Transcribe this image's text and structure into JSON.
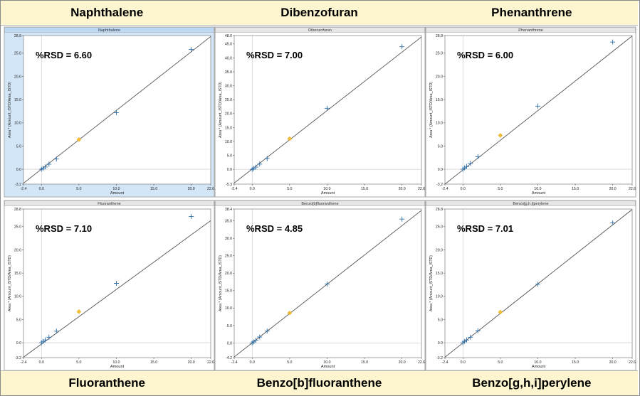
{
  "top_titles": [
    "Naphthalene",
    "Dibenzofuran",
    "Phenanthrene"
  ],
  "bottom_titles": [
    "Fluoranthene",
    "Benzo[b]fluoranthene",
    "Benzo[g,h,i]perylene"
  ],
  "colors": {
    "band": "#fdf5cf",
    "header_selected": "#bcd9f5",
    "header": "#e6e6e6",
    "plot_selected_bg": "#d3e6f7",
    "point": "#2f6fa8",
    "qc_point": "#f5be34",
    "fit_line": "#555555"
  },
  "chart_data": [
    {
      "type": "scatter",
      "title": "Naphthalene",
      "rsd_label": "%RSD = 6.60",
      "xlabel": "Amount",
      "ylabel": "Area * (Amount_ISTD/Area_ISTD)",
      "xlim": [
        -2.4,
        22.6
      ],
      "ylim": [
        -3.2,
        28.8
      ],
      "xticks": [
        "-2.4",
        "0.0",
        "5.0",
        "10.0",
        "15.0",
        "20.0",
        "22.6"
      ],
      "yticks": [
        "28.8",
        "25.0",
        "20.0",
        "15.0",
        "10.0",
        "5.0",
        "0.0",
        "-3.2"
      ],
      "points": [
        [
          0,
          0
        ],
        [
          0.2,
          0.2
        ],
        [
          0.5,
          0.5
        ],
        [
          1,
          1.1
        ],
        [
          2,
          2.2
        ],
        [
          10,
          12.2
        ],
        [
          20,
          25.8
        ]
      ],
      "qc": [
        5,
        6.4
      ],
      "fit": [
        [
          -2.4,
          -3.0
        ],
        [
          22.6,
          28.6
        ]
      ],
      "selected": true
    },
    {
      "type": "scatter",
      "title": "Dibenzofuran",
      "rsd_label": "%RSD = 7.00",
      "xlabel": "Amount",
      "ylabel": "Area * (Amount_ISTD/Area_ISTD)",
      "xlim": [
        -2.4,
        22.6
      ],
      "ylim": [
        -5.3,
        48.0
      ],
      "xticks": [
        "-2.4",
        "0.0",
        "5.0",
        "10.0",
        "15.0",
        "20.0",
        "22.6"
      ],
      "yticks": [
        "48.0",
        "45.0",
        "40.0",
        "35.0",
        "30.0",
        "25.0",
        "20.0",
        "15.0",
        "10.0",
        "5.0",
        "0.0",
        "-5.3"
      ],
      "points": [
        [
          0,
          0
        ],
        [
          0.2,
          0.3
        ],
        [
          0.5,
          0.8
        ],
        [
          1,
          1.9
        ],
        [
          2,
          3.9
        ],
        [
          10,
          21.9
        ],
        [
          20,
          44.0
        ]
      ],
      "qc": [
        5,
        11.0
      ],
      "fit": [
        [
          -2.4,
          -4.9
        ],
        [
          22.6,
          47.5
        ]
      ],
      "selected": false
    },
    {
      "type": "scatter",
      "title": "Phenanthrene",
      "rsd_label": "%RSD = 6.00",
      "xlabel": "Amount",
      "ylabel": "Area * (Amount_ISTD/Area_ISTD)",
      "xlim": [
        -2.4,
        22.6
      ],
      "ylim": [
        -3.2,
        28.8
      ],
      "xticks": [
        "-2.4",
        "0.0",
        "5.0",
        "10.0",
        "15.0",
        "20.0",
        "22.6"
      ],
      "yticks": [
        "28.8",
        "25.0",
        "20.0",
        "15.0",
        "10.0",
        "5.0",
        "0.0",
        "-3.2"
      ],
      "points": [
        [
          0,
          0
        ],
        [
          0.2,
          0.3
        ],
        [
          0.5,
          0.6
        ],
        [
          1,
          1.3
        ],
        [
          2,
          2.7
        ],
        [
          10,
          13.6
        ],
        [
          20,
          27.4
        ]
      ],
      "qc": [
        5,
        7.3
      ],
      "fit": [
        [
          -2.4,
          -3.2
        ],
        [
          22.6,
          28.7
        ]
      ],
      "selected": false
    },
    {
      "type": "scatter",
      "title": "Fluoranthene",
      "rsd_label": "%RSD = 7.10",
      "xlabel": "Amount",
      "ylabel": "Area * (Amount_ISTD/Area_ISTD)",
      "xlim": [
        -2.4,
        22.6
      ],
      "ylim": [
        -3.2,
        28.8
      ],
      "xticks": [
        "-2.4",
        "0.0",
        "5.0",
        "10.0",
        "15.0",
        "20.0",
        "22.6"
      ],
      "yticks": [
        "28.8",
        "25.0",
        "20.0",
        "15.0",
        "10.0",
        "5.0",
        "0.0",
        "-3.2"
      ],
      "points": [
        [
          0,
          0
        ],
        [
          0.2,
          0.3
        ],
        [
          0.5,
          0.6
        ],
        [
          1,
          1.2
        ],
        [
          2,
          2.5
        ],
        [
          10,
          12.8
        ],
        [
          20,
          27.2
        ]
      ],
      "qc": [
        5,
        6.7
      ],
      "fit": [
        [
          -2.4,
          -3.1
        ],
        [
          22.6,
          26.3
        ]
      ],
      "selected": false
    },
    {
      "type": "scatter",
      "title": "Benzo[b]fluoranthene",
      "rsd_label": "%RSD = 4.85",
      "xlabel": "Amount",
      "ylabel": "Area * (Amount_ISTD/Area_ISTD)",
      "xlim": [
        -2.4,
        22.6
      ],
      "ylim": [
        -4.2,
        38.4
      ],
      "xticks": [
        "-2.4",
        "0.0",
        "5.0",
        "10.0",
        "15.0",
        "20.0",
        "22.6"
      ],
      "yticks": [
        "38.4",
        "35.0",
        "30.0",
        "25.0",
        "20.0",
        "15.0",
        "10.0",
        "5.0",
        "0.0",
        "-4.2"
      ],
      "points": [
        [
          0,
          0
        ],
        [
          0.2,
          0.3
        ],
        [
          0.5,
          0.8
        ],
        [
          1,
          1.7
        ],
        [
          2,
          3.4
        ],
        [
          10,
          16.9
        ],
        [
          20,
          35.5
        ]
      ],
      "qc": [
        5,
        8.6
      ],
      "fit": [
        [
          -2.4,
          -4.0
        ],
        [
          22.6,
          38.0
        ]
      ],
      "selected": false
    },
    {
      "type": "scatter",
      "title": "Benzo[g,h,i]perylene",
      "rsd_label": "%RSD = 7.01",
      "xlabel": "Amount",
      "ylabel": "Area * (Amount_ISTD/Area_ISTD)",
      "xlim": [
        -2.4,
        22.6
      ],
      "ylim": [
        -3.2,
        28.8
      ],
      "xticks": [
        "-2.4",
        "0.0",
        "5.0",
        "10.0",
        "15.0",
        "20.0",
        "22.6"
      ],
      "yticks": [
        "28.8",
        "25.0",
        "20.0",
        "15.0",
        "10.0",
        "5.0",
        "0.0",
        "-3.2"
      ],
      "points": [
        [
          0,
          0
        ],
        [
          0.2,
          0.3
        ],
        [
          0.5,
          0.6
        ],
        [
          1,
          1.2
        ],
        [
          2,
          2.6
        ],
        [
          10,
          12.6
        ],
        [
          20,
          25.8
        ]
      ],
      "qc": [
        5,
        6.6
      ],
      "fit": [
        [
          -2.4,
          -3.1
        ],
        [
          22.6,
          28.7
        ]
      ],
      "selected": false
    }
  ]
}
